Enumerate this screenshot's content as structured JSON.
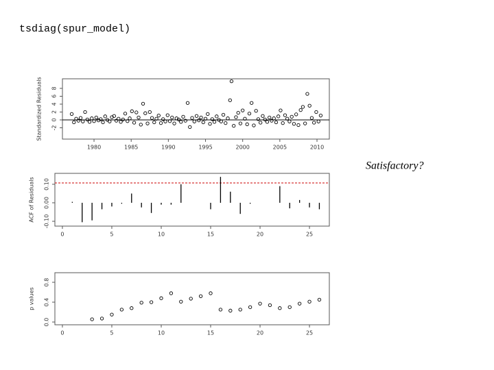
{
  "command": "tsdiag(spur_model)",
  "note_text": "Satisfactory?",
  "chart_data": [
    {
      "type": "scatter",
      "ylabel": "Standardized Residuals",
      "color": "#000000",
      "hline": 0,
      "xlim": [
        1975.75,
        2011.66
      ],
      "ylim": [
        -4.87,
        10.43
      ],
      "xticks": [
        1980,
        1985,
        1990,
        1995,
        2000,
        2005,
        2010
      ],
      "yticks": [
        -2,
        0,
        2,
        4,
        6,
        8
      ],
      "x": [
        1977.0,
        1977.3,
        1977.6,
        1977.9,
        1978.2,
        1978.5,
        1978.8,
        1979.1,
        1979.4,
        1979.7,
        1980.0,
        1980.3,
        1980.6,
        1980.9,
        1981.2,
        1981.5,
        1981.8,
        1982.1,
        1982.4,
        1982.7,
        1983.0,
        1983.3,
        1983.6,
        1983.9,
        1984.2,
        1984.5,
        1984.8,
        1985.1,
        1985.4,
        1985.7,
        1986.0,
        1986.3,
        1986.6,
        1986.9,
        1987.2,
        1987.5,
        1987.8,
        1988.1,
        1988.4,
        1988.7,
        1989.0,
        1989.3,
        1989.6,
        1989.9,
        1990.2,
        1990.5,
        1990.8,
        1991.1,
        1991.4,
        1991.7,
        1992.0,
        1992.3,
        1992.6,
        1992.9,
        1993.2,
        1993.5,
        1993.8,
        1994.1,
        1994.4,
        1994.7,
        1995.0,
        1995.3,
        1995.6,
        1995.9,
        1996.2,
        1996.5,
        1996.8,
        1997.1,
        1997.4,
        1997.7,
        1998.0,
        1998.3,
        1998.5,
        1998.8,
        1999.1,
        1999.4,
        1999.7,
        2000.0,
        2000.3,
        2000.6,
        2000.9,
        2001.2,
        2001.5,
        2001.8,
        2002.1,
        2002.4,
        2002.7,
        2003.0,
        2003.3,
        2003.6,
        2003.9,
        2004.2,
        2004.5,
        2004.8,
        2005.1,
        2005.4,
        2005.7,
        2006.0,
        2006.3,
        2006.6,
        2006.9,
        2007.2,
        2007.5,
        2007.8,
        2008.1,
        2008.4,
        2008.7,
        2009.0,
        2009.3,
        2009.6,
        2009.9,
        2010.2,
        2010.5
      ],
      "values": [
        1.5,
        -0.6,
        0.3,
        -0.2,
        0.5,
        -0.4,
        2.0,
        0.1,
        -0.5,
        0.4,
        -0.3,
        0.6,
        -0.1,
        0.2,
        -0.6,
        0.9,
        0.0,
        -0.4,
        0.7,
        1.0,
        -0.2,
        0.3,
        -0.5,
        0.1,
        1.6,
        -0.3,
        0.4,
        2.2,
        -0.7,
        1.9,
        0.6,
        -1.2,
        4.1,
        1.7,
        -0.9,
        2.0,
        0.5,
        -0.6,
        0.3,
        1.1,
        -0.8,
        0.2,
        -0.4,
        1.2,
        -0.3,
        0.6,
        -0.9,
        0.4,
        0.1,
        -0.5,
        0.8,
        -0.2,
        4.3,
        -1.8,
        0.5,
        -0.4,
        1.0,
        -0.1,
        0.6,
        -0.6,
        0.3,
        1.5,
        -1.0,
        0.2,
        -0.5,
        0.9,
        0.0,
        -0.4,
        1.3,
        -0.8,
        0.4,
        5.0,
        9.8,
        -1.5,
        0.7,
        1.8,
        -0.9,
        2.4,
        0.3,
        -1.1,
        1.6,
        4.3,
        -1.4,
        2.3,
        0.2,
        -0.7,
        1.0,
        0.1,
        -0.5,
        0.6,
        -0.2,
        0.4,
        -0.6,
        0.9,
        2.4,
        -0.8,
        1.2,
        0.3,
        -0.4,
        0.8,
        -1.0,
        1.4,
        -1.3,
        2.5,
        3.3,
        -0.9,
        6.6,
        3.6,
        0.5,
        -0.7,
        2.0,
        -0.4,
        1.1
      ]
    },
    {
      "type": "bar",
      "ylabel": "ACF of Residuals",
      "color": "#000000",
      "ci_line": 0.107,
      "ci_color": "#cc0000",
      "xlim": [
        -0.76,
        27.01
      ],
      "ylim": [
        -0.126,
        0.159
      ],
      "xticks": [
        0,
        5,
        10,
        15,
        20,
        25
      ],
      "yticks": [
        {
          "value": -0.1,
          "label": "-0.10"
        },
        {
          "value": 0,
          "label": "0.00"
        },
        {
          "value": 0.1,
          "label": "0.10"
        }
      ],
      "x": [
        1,
        2,
        3,
        4,
        5,
        6,
        7,
        8,
        9,
        10,
        11,
        12,
        13,
        14,
        15,
        16,
        17,
        18,
        19,
        20,
        21,
        22,
        23,
        24,
        25,
        26
      ],
      "values": [
        0.005,
        -0.105,
        -0.095,
        -0.035,
        -0.02,
        -0.005,
        0.05,
        -0.025,
        -0.055,
        -0.01,
        -0.01,
        0.1,
        0.0,
        0.0,
        -0.035,
        0.14,
        0.06,
        -0.06,
        -0.005,
        0.0,
        0.0,
        0.09,
        -0.03,
        0.015,
        -0.025,
        -0.035
      ]
    },
    {
      "type": "scatter",
      "ylabel": "p values",
      "color": "#000000",
      "xlim": [
        -0.76,
        27.01
      ],
      "ylim": [
        -0.055,
        0.993
      ],
      "xticks": [
        0,
        5,
        10,
        15,
        20,
        25
      ],
      "yticks": [
        {
          "value": 0,
          "label": "0.0"
        },
        {
          "value": 0.4,
          "label": "0.4"
        },
        {
          "value": 0.8,
          "label": "0.8"
        }
      ],
      "x": [
        3,
        4,
        5,
        6,
        7,
        8,
        9,
        10,
        11,
        12,
        13,
        14,
        15,
        16,
        17,
        18,
        19,
        20,
        21,
        22,
        23,
        24,
        25,
        26
      ],
      "values": [
        0.055,
        0.07,
        0.15,
        0.25,
        0.28,
        0.39,
        0.4,
        0.48,
        0.58,
        0.41,
        0.47,
        0.52,
        0.58,
        0.25,
        0.23,
        0.25,
        0.3,
        0.37,
        0.34,
        0.28,
        0.3,
        0.37,
        0.41,
        0.45
      ]
    }
  ]
}
